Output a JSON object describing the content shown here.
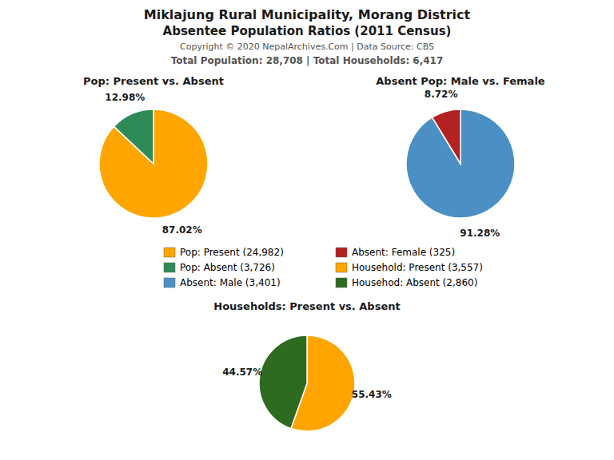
{
  "title": "Miklajung Rural Municipality, Morang District",
  "subtitle": "Absentee Population Ratios (2011 Census)",
  "annotations": [
    "Copyright © 2020 NepalArchives.Com | Data Source: CBS",
    "Total Population: 28,708 | Total Households: 6,417"
  ],
  "chart_data": [
    {
      "type": "pie",
      "title": "Pop: Present vs. Absent",
      "categories": [
        "Pop: Present (24,982)",
        "Pop: Absent (3,726)"
      ],
      "values": [
        87.02,
        12.98
      ],
      "value_labels": [
        "87.02%",
        "12.98%"
      ],
      "colors": [
        "#FFA500",
        "#2E8B57"
      ],
      "data_labels": true
    },
    {
      "type": "pie",
      "title": "Absent Pop: Male vs. Female",
      "categories": [
        "Absent: Male (3,401)",
        "Absent: Female (325)"
      ],
      "values": [
        91.28,
        8.72
      ],
      "value_labels": [
        "91.28%",
        "8.72%"
      ],
      "colors": [
        "#4A90C4",
        "#B22222"
      ],
      "data_labels": true
    },
    {
      "type": "pie",
      "title": "Households: Present vs. Absent",
      "categories": [
        "Household: Present (3,557)",
        "Househod: Absent (2,860)"
      ],
      "values": [
        55.43,
        44.57
      ],
      "value_labels": [
        "55.43%",
        "44.57%"
      ],
      "colors": [
        "#FFA500",
        "#2E6B20"
      ],
      "data_labels": true
    }
  ]
}
